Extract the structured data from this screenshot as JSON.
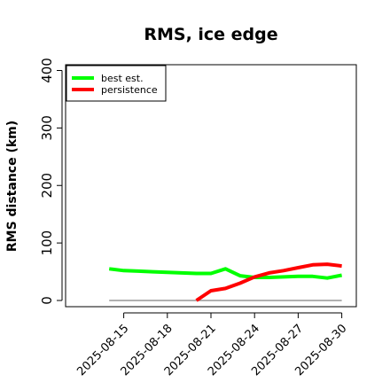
{
  "chart_data": {
    "type": "line",
    "title": "RMS, ice edge",
    "xlabel": "",
    "ylabel": "RMS distance (km)",
    "ylim": [
      0,
      410
    ],
    "y_ticks": [
      0,
      100,
      200,
      300,
      400
    ],
    "x_ticks": [
      "2025-08-15",
      "2025-08-18",
      "2025-08-21",
      "2025-08-24",
      "2025-08-27",
      "2025-08-30"
    ],
    "xlim": [
      "2025-08-11",
      "2025-08-31"
    ],
    "legend_position": "top-left",
    "grid": false,
    "series": [
      {
        "name": "best est.",
        "color": "#00ff00",
        "x": [
          "2025-08-14",
          "2025-08-15",
          "2025-08-16",
          "2025-08-17",
          "2025-08-18",
          "2025-08-19",
          "2025-08-20",
          "2025-08-21",
          "2025-08-22",
          "2025-08-23",
          "2025-08-24",
          "2025-08-25",
          "2025-08-26",
          "2025-08-27",
          "2025-08-28",
          "2025-08-29",
          "2025-08-30"
        ],
        "values": [
          55,
          52,
          51,
          50,
          49,
          48,
          47,
          47,
          55,
          43,
          40,
          40,
          41,
          42,
          42,
          39,
          44
        ]
      },
      {
        "name": "persistence",
        "color": "#ff0000",
        "x": [
          "2025-08-20",
          "2025-08-21",
          "2025-08-22",
          "2025-08-23",
          "2025-08-24",
          "2025-08-25",
          "2025-08-26",
          "2025-08-27",
          "2025-08-28",
          "2025-08-29",
          "2025-08-30"
        ],
        "values": [
          0,
          17,
          21,
          30,
          41,
          48,
          52,
          57,
          62,
          63,
          60
        ]
      },
      {
        "name": "",
        "color": "#808080",
        "x": [
          "2025-08-14",
          "2025-08-30"
        ],
        "values": [
          0,
          0
        ]
      }
    ]
  }
}
